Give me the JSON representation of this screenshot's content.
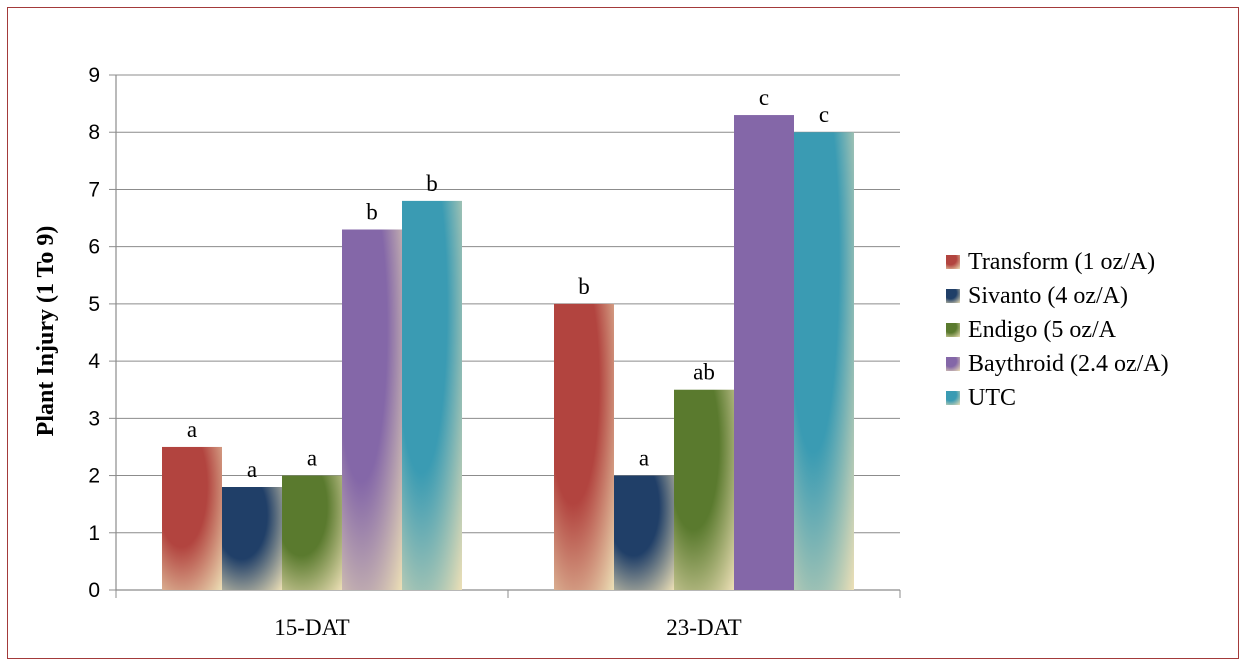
{
  "chart_data": {
    "type": "bar",
    "title": "",
    "xlabel": "",
    "ylabel": "Plant Injury (1 To 9)",
    "ylim": [
      0,
      9
    ],
    "yticks": [
      0,
      1,
      2,
      3,
      4,
      5,
      6,
      7,
      8,
      9
    ],
    "grid": true,
    "legend_position": "right",
    "categories": [
      "15-DAT",
      "23-DAT"
    ],
    "series": [
      {
        "name": "Transform (1 oz/A)",
        "color": "#b2443f",
        "values": [
          2.5,
          5.0
        ],
        "labels": [
          "a",
          "b"
        ]
      },
      {
        "name": "Sivanto (4 oz/A)",
        "color": "#203f68",
        "values": [
          1.8,
          2.0
        ],
        "labels": [
          "a",
          "a"
        ]
      },
      {
        "name": "Endigo (5 oz/A",
        "color": "#5a7a2e",
        "values": [
          2.0,
          3.5
        ],
        "labels": [
          "a",
          "ab"
        ]
      },
      {
        "name": "Baythroid (2.4 oz/A)",
        "color": "#8467a8",
        "values": [
          6.3,
          8.3
        ],
        "labels": [
          "b",
          "c"
        ]
      },
      {
        "name": "UTC",
        "color": "#3a9bb3",
        "values": [
          6.8,
          8.0
        ],
        "labels": [
          "b",
          "c"
        ]
      }
    ]
  }
}
